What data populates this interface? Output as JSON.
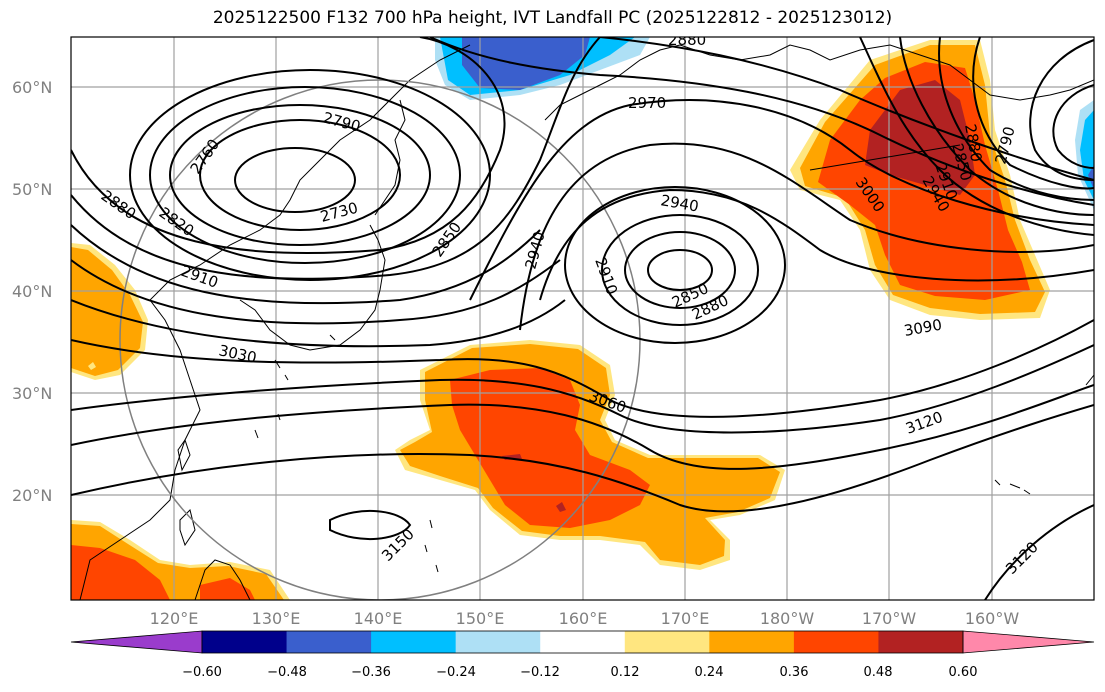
{
  "title": "2025122500 F132 700 hPa height, IVT Landfall PC (2025122812 - 2025123012)",
  "lat_labels": [
    "60°N",
    "50°N",
    "40°N",
    "30°N",
    "20°N"
  ],
  "lon_labels": [
    "120°E",
    "130°E",
    "140°E",
    "150°E",
    "160°E",
    "170°E",
    "180°W",
    "170°W",
    "160°W"
  ],
  "colorbar": {
    "tick_labels": [
      "−0.60",
      "−0.48",
      "−0.36",
      "−0.24",
      "−0.12",
      "0.12",
      "0.24",
      "0.36",
      "0.48",
      "0.60"
    ],
    "colors": [
      "#9a3ccc",
      "#00008b",
      "#3a5fcd",
      "#00bfff",
      "#aee0f5",
      "#ffffff",
      "#ffe680",
      "#ffa500",
      "#ff4500",
      "#b22222",
      "#ff88aa"
    ]
  },
  "contour_labels": {
    "c2880_top": "2880",
    "c2970": "2970",
    "c2790": "2790",
    "c2760": "2760",
    "c2730": "2730",
    "c2850_left": "2850",
    "c2880_left": "2880",
    "c2820": "2820",
    "c2910_left": "2910",
    "c3030": "3030",
    "c2940_mid": "2940",
    "c2940_top": "2940",
    "c2910_mid": "2910",
    "c2850_mid": "2850",
    "c2880_mid": "2880",
    "c3000": "3000",
    "c3090": "3090",
    "c3060": "3060",
    "c3120_right": "3120",
    "c3150": "3150",
    "c3120_br": "3120",
    "c2790_right": "2790",
    "c2880_r": "2880",
    "c2850_r": "2850",
    "c2910_r": "2910",
    "c2940_r": "2940"
  }
}
